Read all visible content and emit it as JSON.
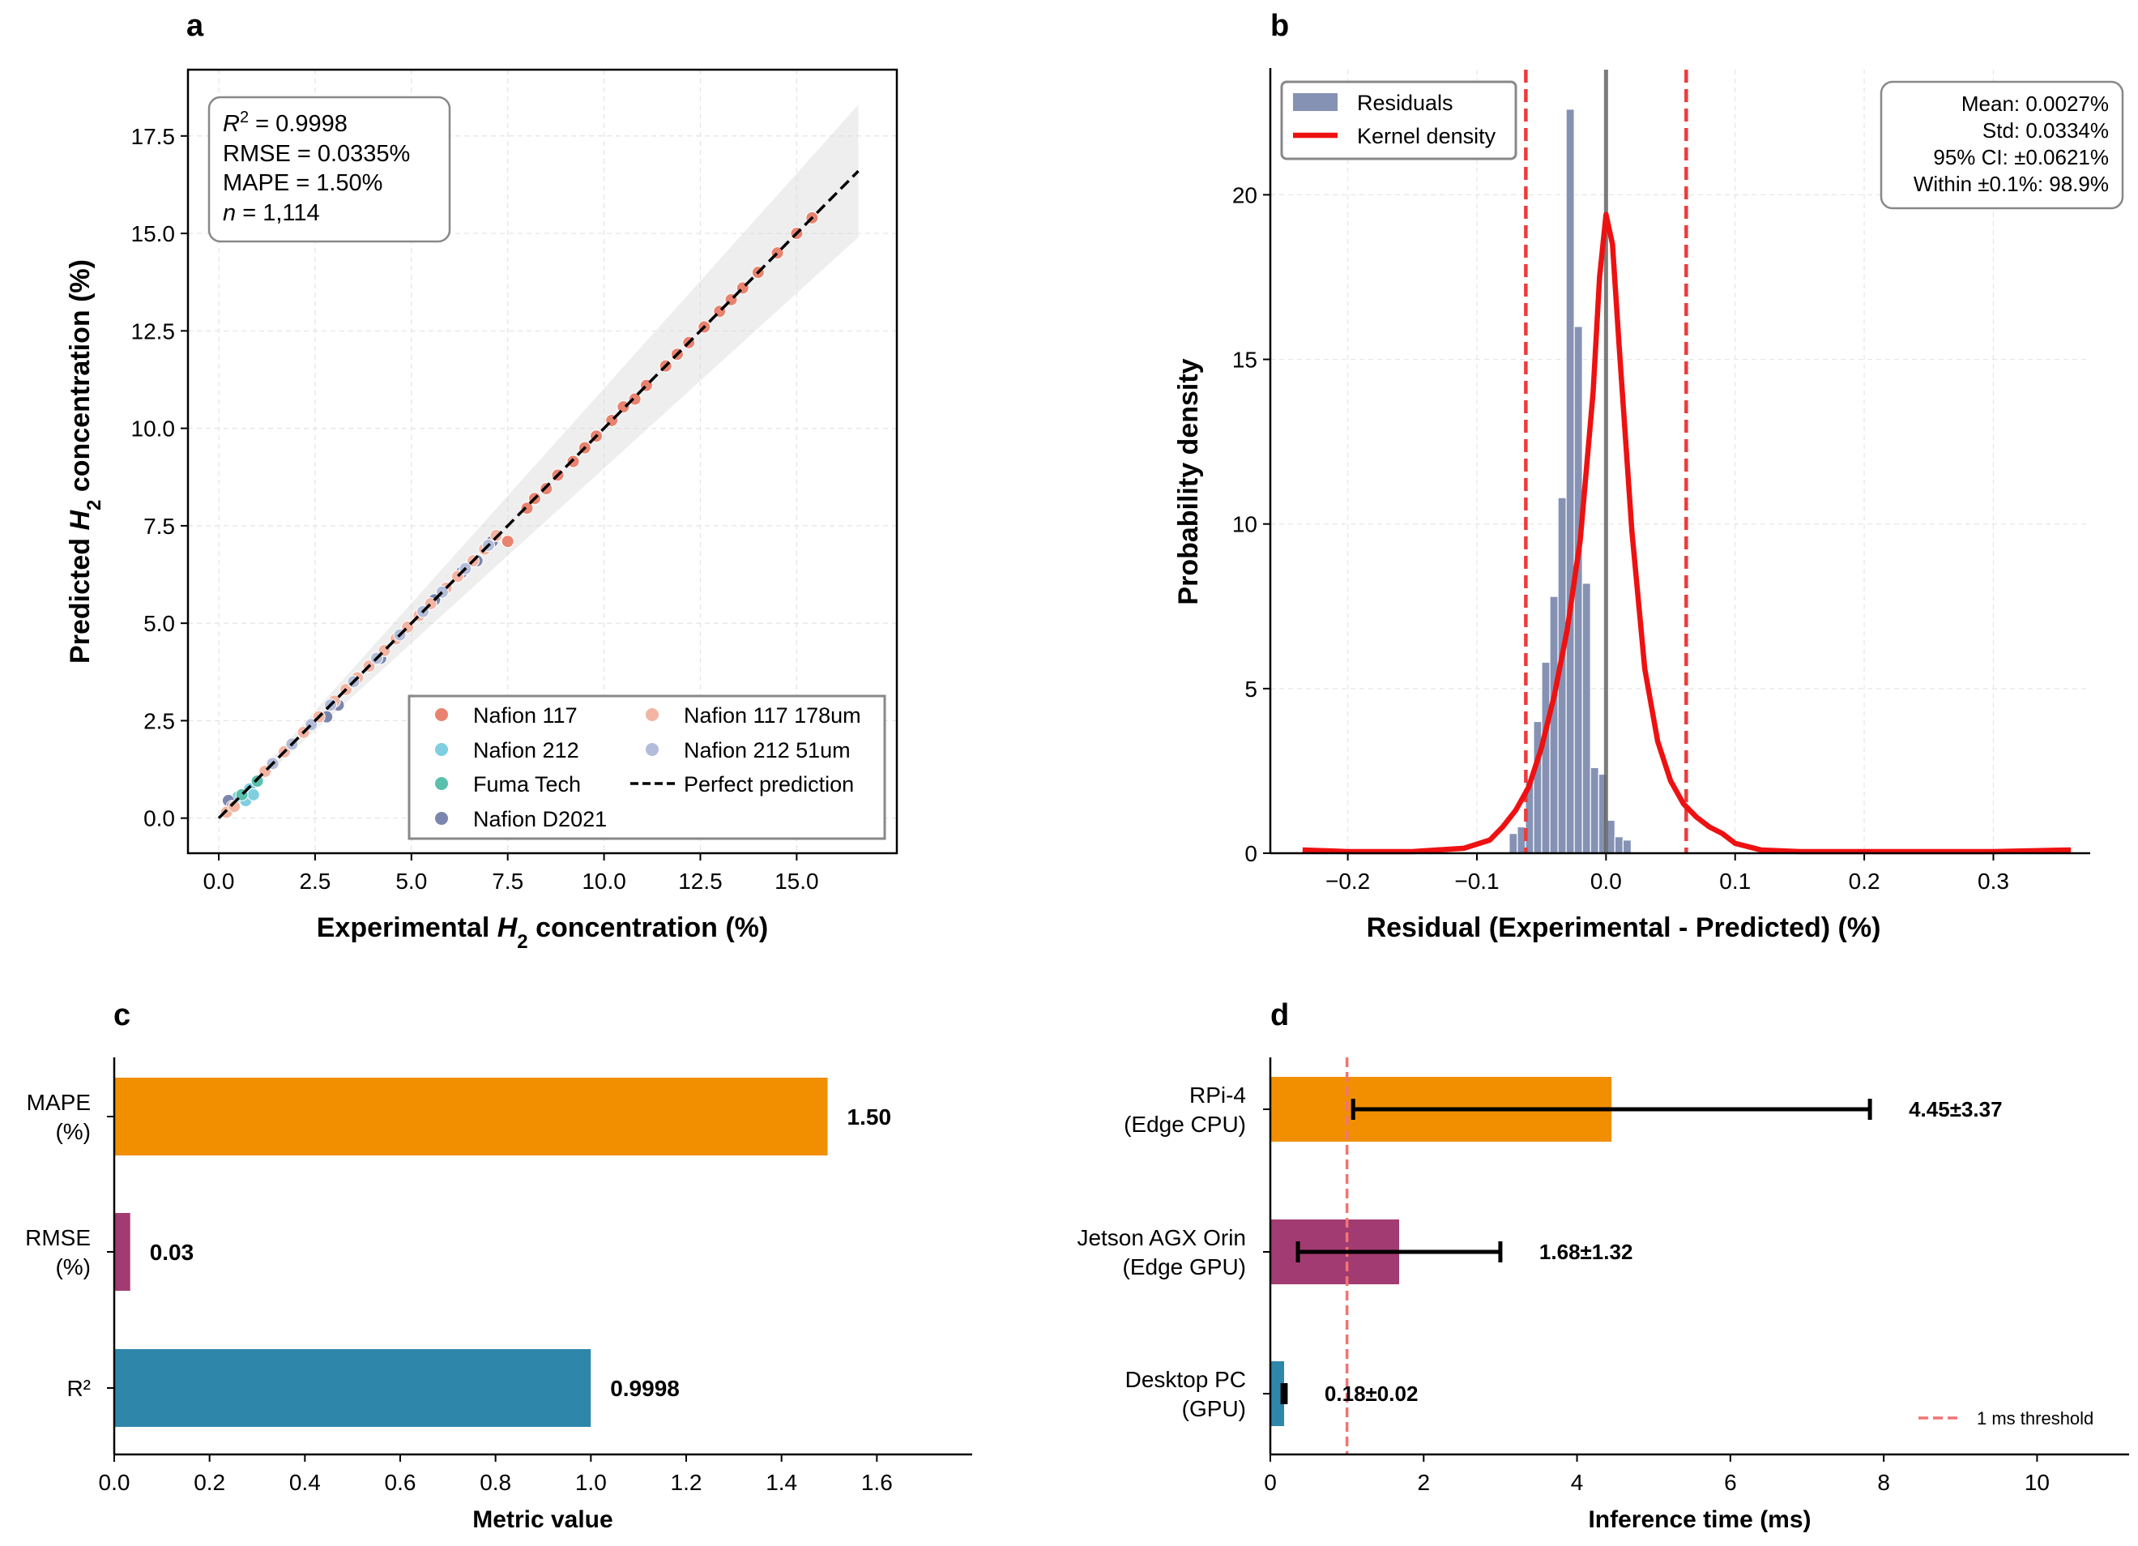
{
  "panels": {
    "a": "a",
    "b": "b",
    "c": "c",
    "d": "d"
  },
  "chart_data": [
    {
      "panel": "a",
      "type": "scatter",
      "xlabel": "Experimental H2 concentration (%)",
      "ylabel": "Predicted H2 concentration (%)",
      "xlabel_parts": {
        "pre": "Experimental ",
        "var": "H",
        "sub": "2",
        "post": " concentration (%)"
      },
      "ylabel_parts": {
        "pre": "Predicted ",
        "var": "H",
        "sub": "2",
        "post": " concentration (%)"
      },
      "xlim": [
        -0.8,
        17.6
      ],
      "ylim": [
        -0.9,
        19.2
      ],
      "xticks": [
        0,
        2.5,
        5,
        7.5,
        10,
        12.5,
        15
      ],
      "yticks": [
        0,
        2.5,
        5,
        7.5,
        10,
        12.5,
        15,
        17.5
      ],
      "tick_labels_x": [
        "0.0",
        "2.5",
        "5.0",
        "7.5",
        "10.0",
        "12.5",
        "15.0"
      ],
      "tick_labels_y": [
        "0.0",
        "2.5",
        "5.0",
        "7.5",
        "10.0",
        "12.5",
        "15.0",
        "17.5"
      ],
      "stats": {
        "r2_label": "R",
        "r2_sup": "2",
        "r2_value": " = 0.9998",
        "rmse": "RMSE = 0.0335%",
        "mape": "MAPE = 1.50%",
        "n_label": "n",
        "n_value": " = 1,114"
      },
      "band": {
        "x_end": 16.6,
        "upper_end": 18.3,
        "lower_end": 14.9
      },
      "perfect_line": [
        [
          0,
          0
        ],
        [
          16.6,
          16.6
        ]
      ],
      "series": [
        {
          "name": "Nafion 117",
          "color": "#e8836f",
          "x": [
            7.5,
            8.0,
            8.2,
            8.5,
            8.8,
            9.2,
            9.5,
            9.8,
            10.2,
            10.5,
            10.8,
            11.1,
            11.6,
            11.9,
            12.2,
            12.6,
            13.0,
            13.3,
            13.6,
            14.0,
            14.5,
            15.0,
            15.4
          ],
          "y": [
            7.1,
            7.95,
            8.2,
            8.45,
            8.8,
            9.15,
            9.5,
            9.8,
            10.2,
            10.55,
            10.75,
            11.1,
            11.6,
            11.9,
            12.2,
            12.6,
            13.0,
            13.3,
            13.6,
            14.0,
            14.5,
            15.0,
            15.4
          ]
        },
        {
          "name": "Nafion 212",
          "color": "#7fcfe0",
          "x": [
            0.5,
            0.7,
            0.8,
            0.9
          ],
          "y": [
            0.55,
            0.45,
            0.75,
            0.6
          ]
        },
        {
          "name": "Fuma Tech",
          "color": "#5bbfae",
          "x": [
            0.6,
            1.0
          ],
          "y": [
            0.6,
            0.95
          ]
        },
        {
          "name": "Nafion D2021",
          "color": "#7a86ad",
          "x": [
            0.25,
            0.35,
            2.8,
            3.1,
            4.2,
            5.6,
            6.3,
            6.7,
            7.1
          ],
          "y": [
            0.45,
            0.3,
            2.6,
            2.9,
            4.1,
            5.6,
            6.3,
            6.6,
            7.1
          ]
        },
        {
          "name": "Nafion 117 178um",
          "color": "#f2b5a4",
          "x": [
            0.2,
            0.4,
            1.2,
            1.7,
            2.2,
            2.6,
            3.0,
            3.3,
            3.6,
            3.9,
            4.3,
            4.6,
            4.9,
            5.2,
            5.5,
            5.9,
            6.2,
            6.6,
            6.9,
            7.2
          ],
          "y": [
            0.15,
            0.3,
            1.2,
            1.7,
            2.2,
            2.6,
            3.0,
            3.3,
            3.6,
            3.9,
            4.3,
            4.6,
            4.9,
            5.2,
            5.5,
            5.9,
            6.2,
            6.6,
            6.9,
            7.25
          ]
        },
        {
          "name": "Nafion 212 51um",
          "color": "#b3bcd8",
          "x": [
            1.4,
            1.9,
            2.4,
            2.9,
            3.5,
            4.1,
            4.7,
            5.3,
            5.8,
            6.4,
            7.0
          ],
          "y": [
            1.4,
            1.9,
            2.4,
            2.9,
            3.5,
            4.1,
            4.7,
            5.3,
            5.8,
            6.4,
            7.0
          ]
        }
      ],
      "legend": {
        "items": [
          "Nafion 117",
          "Nafion 117 178um",
          "Nafion 212",
          "Nafion 212 51um",
          "Fuma Tech",
          "Perfect prediction",
          "Nafion D2021"
        ],
        "line_label": "Perfect prediction",
        "placement": "lower-right"
      }
    },
    {
      "panel": "b",
      "type": "bar",
      "xlabel": "Residual (Experimental - Predicted) (%)",
      "ylabel": "Probability density",
      "xlim": [
        -0.26,
        0.375
      ],
      "ylim": [
        0,
        23.8
      ],
      "xticks": [
        -0.2,
        -0.1,
        0.0,
        0.1,
        0.2,
        0.3
      ],
      "tick_labels_x": [
        "−0.2",
        "−0.1",
        "0.0",
        "0.1",
        "0.2",
        "0.3"
      ],
      "yticks": [
        0,
        5,
        10,
        15,
        20
      ],
      "tick_labels_y": [
        "0",
        "5",
        "10",
        "15",
        "20"
      ],
      "histogram": {
        "bin_start": -0.075,
        "bin_width": 0.0063,
        "values": [
          0.6,
          0.8,
          2.2,
          4.0,
          5.8,
          7.8,
          10.8,
          22.6,
          16.0,
          8.2,
          2.6,
          2.4,
          1.0,
          0.5,
          0.4
        ]
      },
      "kde": {
        "x": [
          -0.235,
          -0.2,
          -0.15,
          -0.11,
          -0.09,
          -0.08,
          -0.07,
          -0.06,
          -0.05,
          -0.04,
          -0.03,
          -0.02,
          -0.01,
          -0.005,
          0,
          0.005,
          0.01,
          0.02,
          0.03,
          0.04,
          0.05,
          0.06,
          0.07,
          0.08,
          0.09,
          0.1,
          0.12,
          0.15,
          0.2,
          0.25,
          0.3,
          0.36
        ],
        "y": [
          0.1,
          0.05,
          0.05,
          0.15,
          0.4,
          0.8,
          1.3,
          2.0,
          3.2,
          4.8,
          6.8,
          9.5,
          14.0,
          17.5,
          19.4,
          18.5,
          15.5,
          9.8,
          5.6,
          3.4,
          2.2,
          1.5,
          1.1,
          0.8,
          0.6,
          0.3,
          0.1,
          0.05,
          0.05,
          0.05,
          0.05,
          0.1
        ]
      },
      "ci_lines": [
        -0.0621,
        0.0621
      ],
      "zero_line": 0.0,
      "legend": {
        "items": [
          "Residuals",
          "Kernel density"
        ],
        "placement": "upper-left"
      },
      "stats": [
        "Mean: 0.0027%",
        "Std: 0.0334%",
        "95% CI: ±0.0621%",
        "Within ±0.1%: 98.9%"
      ],
      "colors": {
        "hist": "#8592b4",
        "kde": "#ee1111",
        "ci": "#ee3b3b",
        "zero": "#666666"
      }
    },
    {
      "panel": "c",
      "type": "bar",
      "orientation": "horizontal",
      "xlabel": "Metric value",
      "xlim": [
        0,
        1.8
      ],
      "xticks": [
        0,
        0.2,
        0.4,
        0.6,
        0.8,
        1.0,
        1.2,
        1.4,
        1.6
      ],
      "tick_labels_x": [
        "0.0",
        "0.2",
        "0.4",
        "0.6",
        "0.8",
        "1.0",
        "1.2",
        "1.4",
        "1.6"
      ],
      "categories": [
        [
          "MAPE",
          "(%)"
        ],
        [
          "RMSE",
          "(%)"
        ],
        [
          "R²"
        ]
      ],
      "values": [
        1.4967,
        0.0335,
        0.9998
      ],
      "value_labels": [
        "1.50",
        "0.03",
        "0.9998"
      ],
      "colors": [
        "#f18f01",
        "#a23b72",
        "#2e86ab"
      ]
    },
    {
      "panel": "d",
      "type": "bar",
      "orientation": "horizontal",
      "xlabel": "Inference time (ms)",
      "xlim": [
        0,
        11.2
      ],
      "xticks": [
        0,
        2,
        4,
        6,
        8,
        10
      ],
      "tick_labels_x": [
        "0",
        "2",
        "4",
        "6",
        "8",
        "10"
      ],
      "categories": [
        [
          "RPi-4",
          "(Edge CPU)"
        ],
        [
          "Jetson AGX Orin",
          "(Edge GPU)"
        ],
        [
          "Desktop PC",
          "(GPU)"
        ]
      ],
      "values": [
        4.45,
        1.68,
        0.18
      ],
      "errors": [
        3.37,
        1.32,
        0.02
      ],
      "value_labels": [
        "4.45±3.37",
        "1.68±1.32",
        "0.18±0.02"
      ],
      "colors": [
        "#f18f01",
        "#a23b72",
        "#2e86ab"
      ],
      "threshold": {
        "value": 1.0,
        "label": "1 ms threshold",
        "color": "#f27474"
      },
      "legend": {
        "placement": "lower-right"
      }
    }
  ]
}
